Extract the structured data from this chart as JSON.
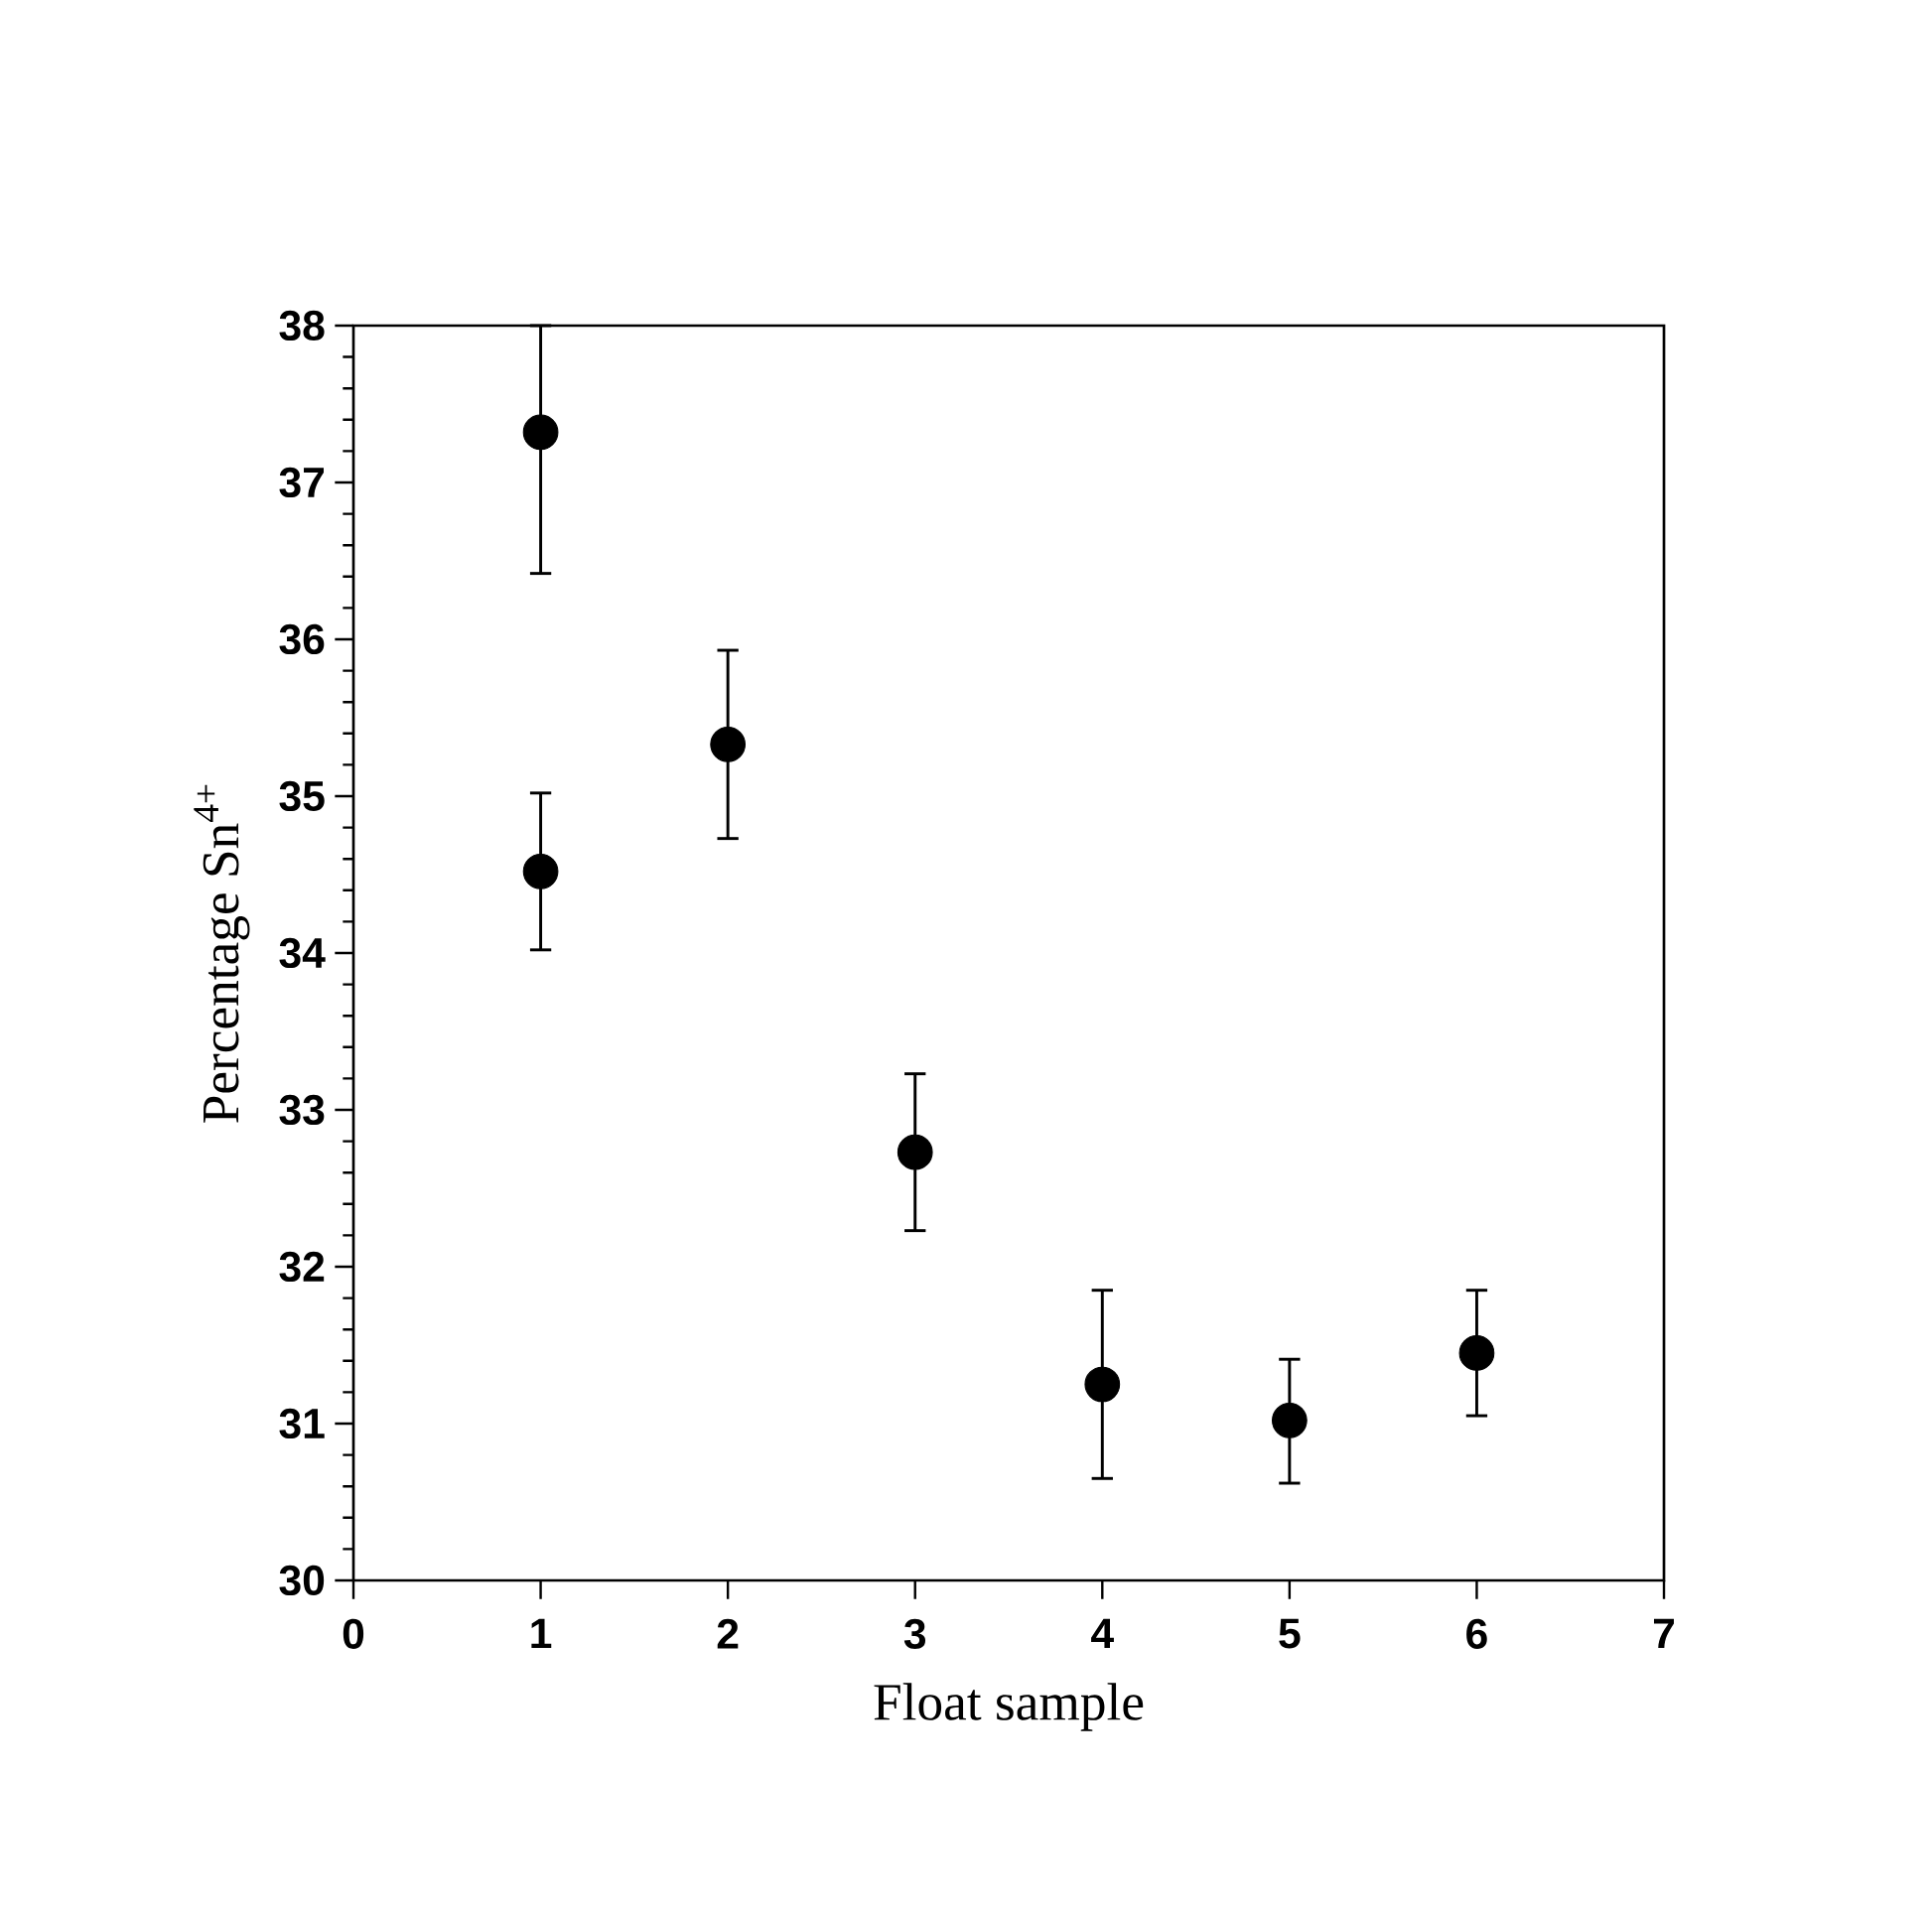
{
  "chart_data": {
    "type": "scatter",
    "xlabel": "Float sample",
    "ylabel": "Percentage Sn$^{4+}$",
    "x": [
      1,
      1,
      2,
      3,
      4,
      5,
      6
    ],
    "values": [
      37.32,
      34.52,
      35.33,
      32.73,
      31.25,
      31.02,
      31.45
    ],
    "errors": [
      [
        36.42,
        38.0
      ],
      [
        34.02,
        35.02
      ],
      [
        34.73,
        35.93
      ],
      [
        32.23,
        33.23
      ],
      [
        30.65,
        31.85
      ],
      [
        30.62,
        31.41
      ],
      [
        31.05,
        31.85
      ]
    ],
    "color": "#000000",
    "marker": "circle",
    "xlim": [
      0,
      7
    ],
    "ylim": [
      30,
      38
    ],
    "xticks": [
      0,
      1,
      2,
      3,
      4,
      5,
      6,
      7
    ],
    "yticks": [
      30,
      31,
      32,
      33,
      34,
      35,
      36,
      37,
      38
    ]
  }
}
